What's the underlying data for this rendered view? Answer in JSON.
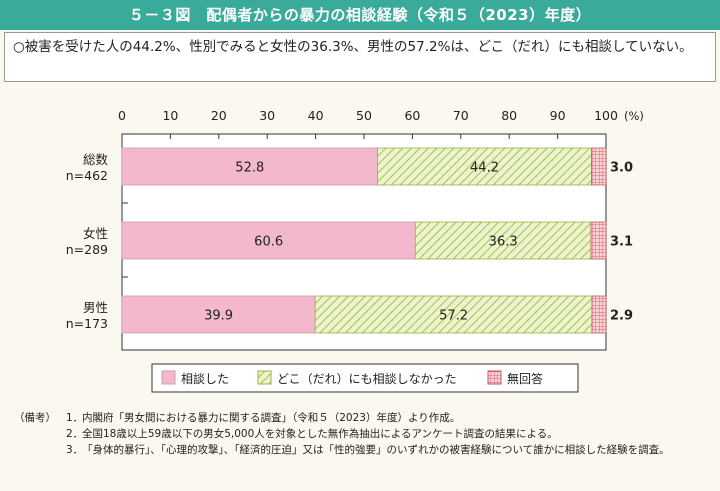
{
  "title": "５－３図　配偶者からの暴力の相談経験（令和５（2023）年度）",
  "summary": "○被害を受けた人の44.2%、性別でみると女性の36.3%、男性の57.2%は、どこ（だれ）にも相談していない。",
  "colors": {
    "title_bg": "#3aaa9a",
    "consulted": "#f3b8cb",
    "not_consulted": "#d3e49a",
    "no_answer": "#e8a0a8"
  },
  "chart_data": {
    "type": "bar",
    "orientation": "horizontal",
    "stacked": true,
    "percent_stacked": true,
    "xlim": [
      0,
      100
    ],
    "xticks": [
      "0",
      "10",
      "20",
      "30",
      "40",
      "50",
      "60",
      "70",
      "80",
      "90",
      "100"
    ],
    "x_unit": "(%)",
    "categories": [
      {
        "name": "総数",
        "n": "n=462"
      },
      {
        "name": "女性",
        "n": "n=289"
      },
      {
        "name": "男性",
        "n": "n=173"
      }
    ],
    "series": [
      {
        "name": "相談した",
        "values": [
          52.8,
          60.6,
          39.9
        ],
        "labels": [
          "52.8",
          "60.6",
          "39.9"
        ],
        "pattern": "solid"
      },
      {
        "name": "どこ（だれ）にも相談しなかった",
        "values": [
          44.2,
          36.3,
          57.2
        ],
        "labels": [
          "44.2",
          "36.3",
          "57.2"
        ],
        "pattern": "diagonal"
      },
      {
        "name": "無回答",
        "values": [
          3.0,
          3.1,
          2.9
        ],
        "labels": [
          "3.0",
          "3.1",
          "2.9"
        ],
        "pattern": "grid"
      }
    ],
    "legend_position": "bottom",
    "grid": false
  },
  "notes": {
    "head": "（備考）",
    "items": [
      {
        "num": "1．",
        "text": "内閣府「男女間における暴力に関する調査」（令和５（2023）年度）より作成。"
      },
      {
        "num": "2．",
        "text": "全国18歳以上59歳以下の男女5,000人を対象とした無作為抽出によるアンケート調査の結果による。"
      },
      {
        "num": "3．",
        "text": "「身体的暴行」、「心理的攻撃」、「経済的圧迫」又は「性的強要」のいずれかの被害経験について誰かに相談した経験を調査。"
      }
    ]
  }
}
